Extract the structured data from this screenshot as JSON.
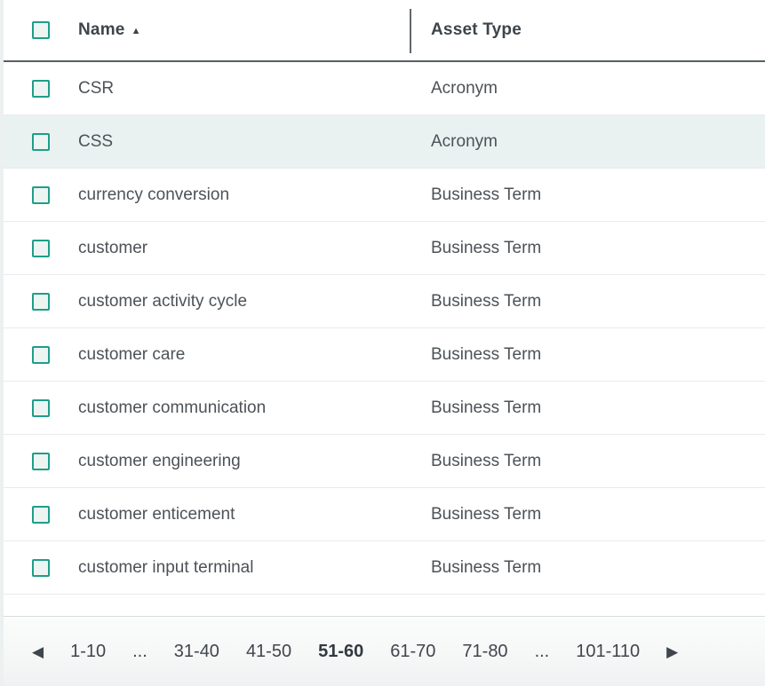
{
  "colors": {
    "accent_teal": "#1e9e88",
    "checkbox_fill": "#edf5f2",
    "highlighted_row_bg": "#e9f2f0",
    "header_text": "#3d444b",
    "body_text": "#4c5257",
    "header_border": "#595e62",
    "row_border": "#e7ebed"
  },
  "table": {
    "columns": [
      {
        "label": "Name",
        "sorted": "ascending",
        "sort_icon": "sort-ascending-icon"
      },
      {
        "label": "Asset Type"
      }
    ],
    "sort_arrow_glyph": "▲",
    "rows": [
      {
        "name": "CSR",
        "type": "Acronym",
        "highlighted": false
      },
      {
        "name": "CSS",
        "type": "Acronym",
        "highlighted": true
      },
      {
        "name": "currency conversion",
        "type": "Business Term",
        "highlighted": false
      },
      {
        "name": "customer",
        "type": "Business Term",
        "highlighted": false
      },
      {
        "name": "customer activity cycle",
        "type": "Business Term",
        "highlighted": false
      },
      {
        "name": "customer care",
        "type": "Business Term",
        "highlighted": false
      },
      {
        "name": "customer communication",
        "type": "Business Term",
        "highlighted": false
      },
      {
        "name": "customer engineering",
        "type": "Business Term",
        "highlighted": false
      },
      {
        "name": "customer enticement",
        "type": "Business Term",
        "highlighted": false
      },
      {
        "name": "customer input terminal",
        "type": "Business Term",
        "highlighted": false
      }
    ]
  },
  "pagination": {
    "prev_glyph": "◀",
    "next_glyph": "▶",
    "items": [
      {
        "label": "1-10",
        "current": false
      },
      {
        "label": "...",
        "current": false
      },
      {
        "label": "31-40",
        "current": false
      },
      {
        "label": "41-50",
        "current": false
      },
      {
        "label": "51-60",
        "current": true
      },
      {
        "label": "61-70",
        "current": false
      },
      {
        "label": "71-80",
        "current": false
      },
      {
        "label": "...",
        "current": false
      },
      {
        "label": "101-110",
        "current": false
      }
    ]
  }
}
